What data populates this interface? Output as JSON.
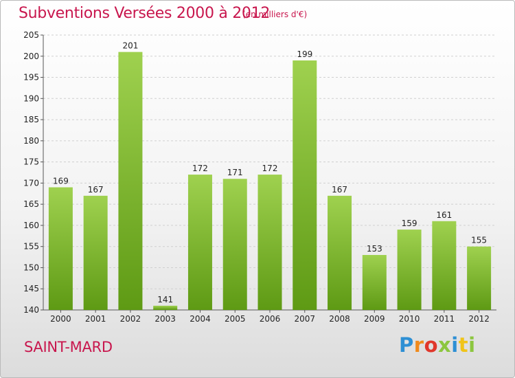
{
  "header": {
    "title": "Subventions Versées 2000 à 2012",
    "subtitle": "(en milliers d'€)"
  },
  "footer": {
    "commune": "SAINT-MARD",
    "logo": [
      "P",
      "r",
      "o",
      "x",
      "i",
      "t",
      "i"
    ]
  },
  "colors": {
    "title": "#c8164d",
    "bar_light": "#9fd14f",
    "bar_dark": "#5e9a14",
    "grid": "#cfcfcf"
  },
  "chart_data": {
    "type": "bar",
    "title": "Subventions Versées 2000 à 2012",
    "subtitle": "(en milliers d'€)",
    "categories": [
      "2000",
      "2001",
      "2002",
      "2003",
      "2004",
      "2005",
      "2006",
      "2007",
      "2008",
      "2009",
      "2010",
      "2011",
      "2012"
    ],
    "values": [
      169,
      167,
      201,
      141,
      172,
      171,
      172,
      199,
      167,
      153,
      159,
      161,
      155
    ],
    "ylim": [
      140,
      205
    ],
    "yticks": [
      140,
      145,
      150,
      155,
      160,
      165,
      170,
      175,
      180,
      185,
      190,
      195,
      200,
      205
    ],
    "xlabel": "",
    "ylabel": "",
    "grid": true,
    "data_labels": true
  }
}
